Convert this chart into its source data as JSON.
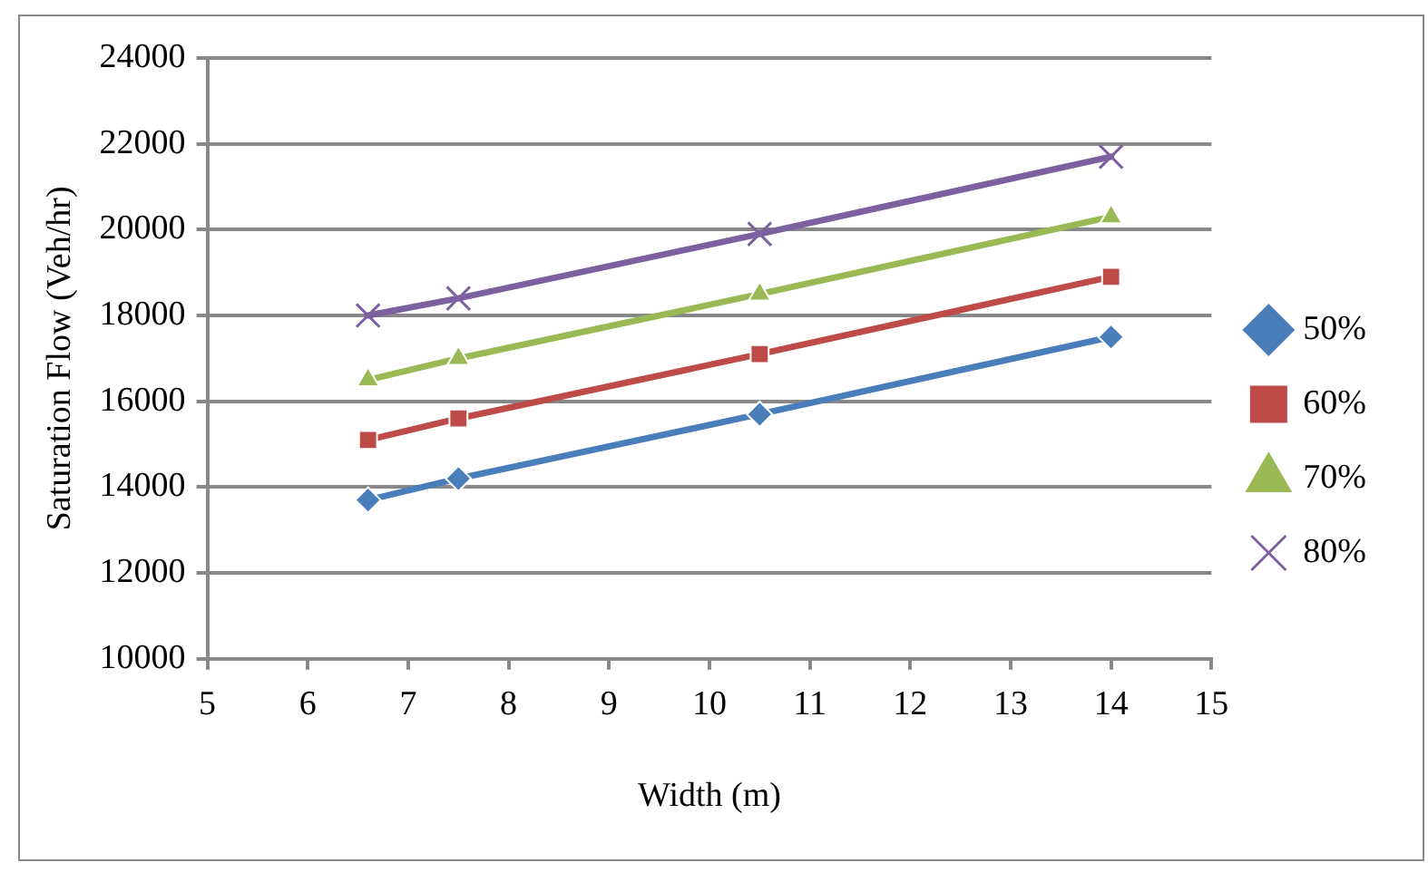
{
  "chart_data": {
    "type": "line",
    "xlabel": "Width (m)",
    "ylabel": "Saturation Flow (Veh/hr)",
    "x": [
      6.6,
      7.5,
      10.5,
      14
    ],
    "series": [
      {
        "name": "50%",
        "color": "#4a7ebb",
        "marker": "diamond",
        "values": [
          13700,
          14200,
          15700,
          17500
        ]
      },
      {
        "name": "60%",
        "color": "#be4b48",
        "marker": "square",
        "values": [
          15100,
          15600,
          17100,
          18900
        ]
      },
      {
        "name": "70%",
        "color": "#98b954",
        "marker": "triangle",
        "values": [
          16500,
          17000,
          18500,
          20300
        ]
      },
      {
        "name": "80%",
        "color": "#7d60a0",
        "marker": "cross",
        "values": [
          18000,
          18400,
          19900,
          21700
        ]
      }
    ],
    "xlim": [
      5,
      15
    ],
    "xticks": [
      5,
      6,
      7,
      8,
      9,
      10,
      11,
      12,
      13,
      14,
      15
    ],
    "ylim": [
      10000,
      24000
    ],
    "yticks": [
      10000,
      12000,
      14000,
      16000,
      18000,
      20000,
      22000,
      24000
    ],
    "grid": "y",
    "legend": "right",
    "line_style": "solid"
  }
}
